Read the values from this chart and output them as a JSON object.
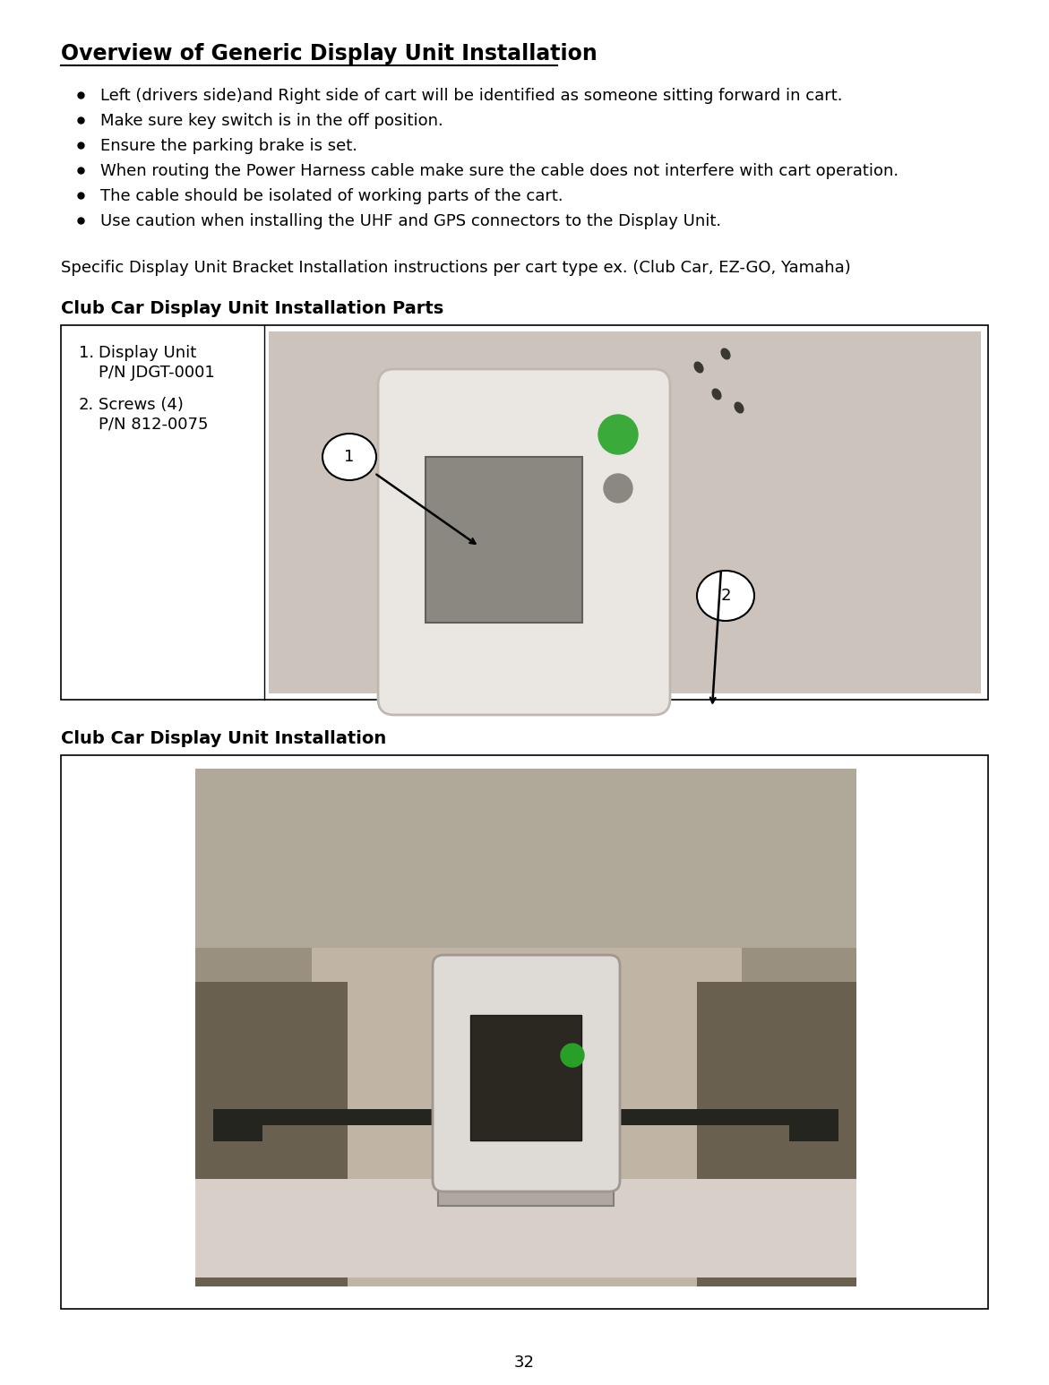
{
  "bg_color": "#ffffff",
  "page_number": "32",
  "title": "Overview of Generic Display Unit Installation",
  "bullets": [
    "Left (drivers side)and Right side of cart will be identified as someone sitting forward in cart.",
    "Make sure key switch is in the off position.",
    "Ensure the parking brake is set.",
    "When routing the Power Harness cable make sure the cable does not interfere with cart operation.",
    "The cable should be isolated of working parts of the cart.",
    "Use caution when installing the UHF and GPS connectors to the Display Unit."
  ],
  "specific_line": "Specific Display Unit Bracket Installation instructions per cart type ex. (Club Car, EZ-GO, Yamaha)",
  "parts_heading": "Club Car Display Unit Installation Parts",
  "install_heading": "Club Car Display Unit Installation",
  "parts_item1_line1": "Display Unit",
  "parts_item1_line2": "P/N JDGT-0001",
  "parts_item2_line1": "Screws (4)",
  "parts_item2_line2": "P/N 812-0075",
  "ann1_label": "1",
  "ann2_label": "2"
}
